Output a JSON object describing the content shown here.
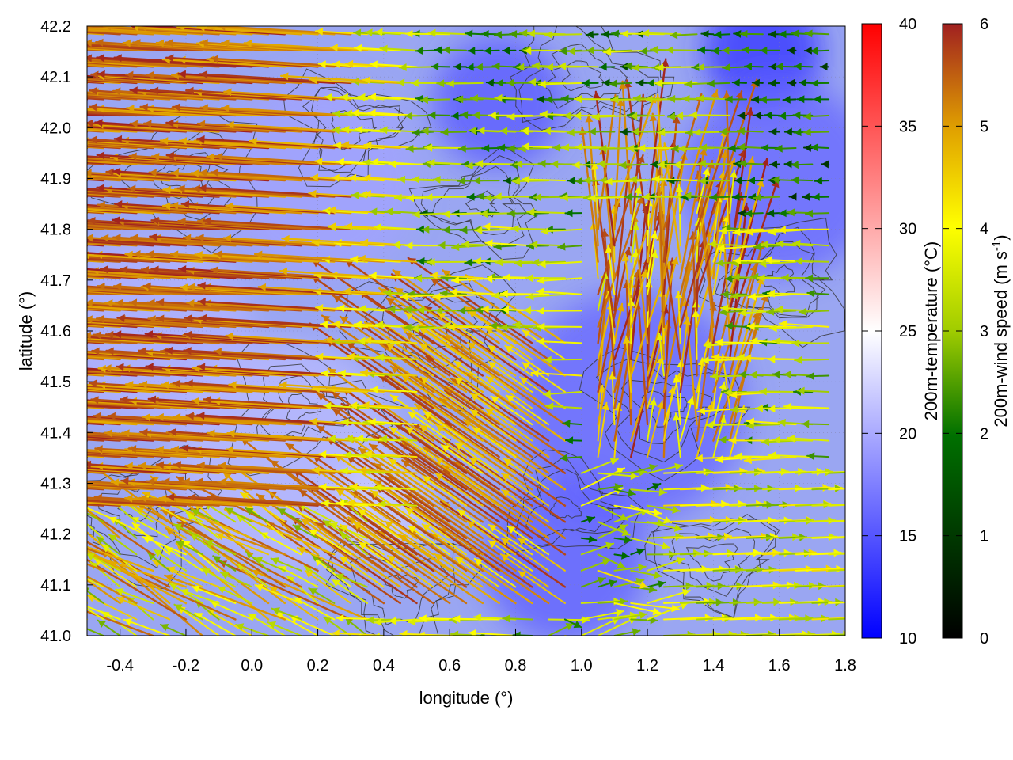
{
  "chart_data": {
    "type": "vector-field",
    "xlabel": "longitude (°)",
    "ylabel": "latitude (°)",
    "xlim": [
      -0.5,
      1.8
    ],
    "ylim": [
      41.0,
      42.2
    ],
    "x_ticks": [
      "-0.4",
      "-0.2",
      "0.0",
      "0.2",
      "0.4",
      "0.6",
      "0.8",
      "1.0",
      "1.2",
      "1.4",
      "1.6",
      "1.8"
    ],
    "y_ticks": [
      "41.0",
      "41.1",
      "41.2",
      "41.3",
      "41.4",
      "41.5",
      "41.6",
      "41.7",
      "41.8",
      "41.9",
      "42.0",
      "42.1",
      "42.2"
    ],
    "grid": true,
    "background_field": {
      "name": "200m-temperature",
      "colorbar_label": "200m-temperature (°C)",
      "range": [
        10,
        40
      ],
      "ticks": [
        "10",
        "15",
        "20",
        "25",
        "30",
        "35",
        "40"
      ],
      "colors": [
        "#0000ff",
        "#ffffff",
        "#ff0000"
      ],
      "patches": [
        {
          "lon": 1.55,
          "lat": 42.15,
          "radius": 0.18,
          "value": 13
        },
        {
          "lon": 0.75,
          "lat": 42.05,
          "radius": 0.2,
          "value": 15
        },
        {
          "lon": 1.15,
          "lat": 41.45,
          "radius": 0.35,
          "value": 16
        },
        {
          "lon": 0.95,
          "lat": 41.15,
          "radius": 0.25,
          "value": 15.5
        },
        {
          "lon": 1.6,
          "lat": 41.9,
          "radius": 0.3,
          "value": 16
        },
        {
          "lon": 0.1,
          "lat": 41.35,
          "radius": 0.35,
          "value": 21
        },
        {
          "lon": -0.3,
          "lat": 41.6,
          "radius": 0.3,
          "value": 20.5
        },
        {
          "lon": 0.4,
          "lat": 41.25,
          "radius": 0.15,
          "value": 22
        },
        {
          "lon": 0.2,
          "lat": 41.9,
          "radius": 0.3,
          "value": 19.5
        }
      ]
    },
    "vector_field": {
      "name": "200m-wind speed",
      "colorbar_label": "200m-wind speed (m s-1)",
      "range": [
        0,
        6
      ],
      "ticks": [
        "0",
        "1",
        "2",
        "3",
        "4",
        "5",
        "6"
      ],
      "colors": [
        "#000000",
        "#007000",
        "#a0cc00",
        "#ffff00",
        "#e0a000",
        "#a02020"
      ],
      "grid_step": {
        "lon": 0.05,
        "lat": 0.032
      },
      "regimes": [
        {
          "region": "west of 0.5°E",
          "direction": "westward",
          "speed": "5–6"
        },
        {
          "region": "0.5–1.0°E, 41.3–41.6°N",
          "direction": "north-west",
          "speed": "4–6"
        },
        {
          "region": "1.1–1.5°E, 41.4–41.8°N",
          "direction": "north",
          "speed": "3–6"
        },
        {
          "region": "east of 1.3°E, south of 41.4°N",
          "direction": "eastward",
          "speed": "2–4"
        },
        {
          "region": "north-east",
          "direction": "westward",
          "speed": "1–3"
        }
      ]
    },
    "contours": {
      "color": "#333333",
      "description": "terrain elevation contours"
    }
  }
}
